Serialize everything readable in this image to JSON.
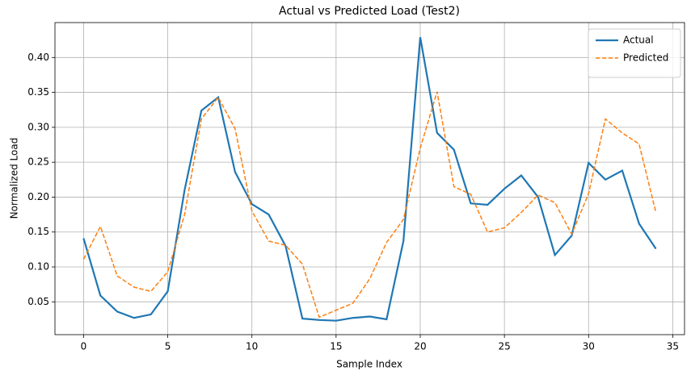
{
  "chart_data": {
    "type": "line",
    "title": "Actual vs Predicted Load (Test2)",
    "x_label": "Sample Index",
    "y_label": "Normalized Load",
    "x": [
      0,
      1,
      2,
      3,
      4,
      5,
      6,
      7,
      8,
      9,
      10,
      11,
      12,
      13,
      14,
      15,
      16,
      17,
      18,
      19,
      20,
      21,
      22,
      23,
      24,
      25,
      26,
      27,
      28,
      29,
      30,
      31,
      32,
      33,
      34
    ],
    "series": [
      {
        "name": "Actual",
        "color": "#1f77b4",
        "style": "solid",
        "values": [
          0.141,
          0.059,
          0.036,
          0.027,
          0.032,
          0.065,
          0.21,
          0.324,
          0.343,
          0.236,
          0.19,
          0.175,
          0.13,
          0.026,
          0.024,
          0.023,
          0.027,
          0.029,
          0.025,
          0.137,
          0.429,
          0.292,
          0.268,
          0.191,
          0.189,
          0.212,
          0.231,
          0.2,
          0.117,
          0.145,
          0.249,
          0.225,
          0.238,
          0.162,
          0.126
        ]
      },
      {
        "name": "Predicted",
        "color": "#ff7f0e",
        "style": "dashed",
        "values": [
          0.111,
          0.158,
          0.087,
          0.071,
          0.065,
          0.093,
          0.175,
          0.312,
          0.343,
          0.298,
          0.18,
          0.137,
          0.131,
          0.104,
          0.028,
          0.038,
          0.048,
          0.083,
          0.135,
          0.168,
          0.27,
          0.351,
          0.215,
          0.204,
          0.15,
          0.156,
          0.178,
          0.203,
          0.192,
          0.147,
          0.205,
          0.312,
          0.292,
          0.276,
          0.178
        ]
      }
    ],
    "xlim": [
      -1.7,
      35.7
    ],
    "xticks": [
      0,
      5,
      10,
      15,
      20,
      25,
      30,
      35
    ],
    "ylim": [
      0.003,
      0.45
    ],
    "yticks": [
      {
        "value": 0.05,
        "label": "0.05"
      },
      {
        "value": 0.1,
        "label": "0.10"
      },
      {
        "value": 0.15,
        "label": "0.15"
      },
      {
        "value": 0.2,
        "label": "0.20"
      },
      {
        "value": 0.25,
        "label": "0.25"
      },
      {
        "value": 0.3,
        "label": "0.30"
      },
      {
        "value": 0.35,
        "label": "0.35"
      },
      {
        "value": 0.4,
        "label": "0.40"
      }
    ],
    "grid": true,
    "legend": "upper-right"
  }
}
